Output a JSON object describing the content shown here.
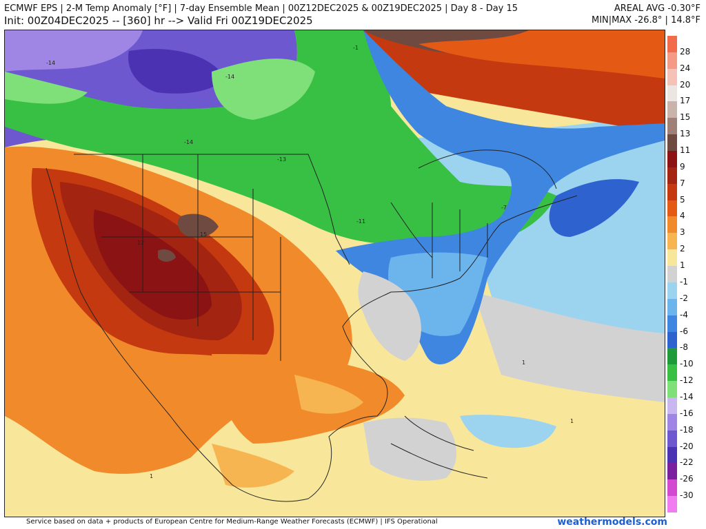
{
  "header": {
    "line1": "ECMWF EPS | 2-M Temp Anomaly [°F] | 7-day Ensemble Mean | 00Z12DEC2025 & 00Z19DEC2025 | Day 8 - Day 15",
    "line2": "Init: 00Z04DEC2025 -- [360] hr --> Valid Fri 00Z19DEC2025",
    "areal_avg": "AREAL AVG -0.30°F",
    "min_max": "MIN|MAX -26.8° | 14.8°F"
  },
  "footer": {
    "credit": "Service based on data + products of European Centre for Medium-Range Weather Forecasts (ECMWF) | IFS Operational",
    "brand": "weathermodels.com"
  },
  "scale": {
    "labels": [
      "28",
      "24",
      "20",
      "17",
      "15",
      "13",
      "11",
      "9",
      "7",
      "5",
      "4",
      "3",
      "2",
      "1",
      "-1",
      "-2",
      "-4",
      "-6",
      "-8",
      "-10",
      "-12",
      "-14",
      "-16",
      "-18",
      "-20",
      "-22",
      "-26",
      "-30"
    ],
    "colors": [
      "#f26b4a",
      "#f49a86",
      "#f6c2b8",
      "#ece6e3",
      "#c9b3ab",
      "#9f8177",
      "#6f4a40",
      "#8b1313",
      "#a32410",
      "#c4390f",
      "#e45a14",
      "#f08a2a",
      "#f7b552",
      "#f8e79a",
      "#d2d2d2",
      "#9cd4f0",
      "#6cb4ec",
      "#3f86e0",
      "#2d62cf",
      "#1f9a3a",
      "#37c044",
      "#7fe07a",
      "#c9b8f0",
      "#9f86e4",
      "#6d58cf",
      "#4a32b3",
      "#7a1f9d",
      "#d24ad0",
      "#f07cf0"
    ]
  },
  "map_labels": {
    "minus14_a": "-14",
    "minus14_b": "-14",
    "minus14_c": "-14",
    "plus15": "15",
    "plus12": "12",
    "minus7": "-7",
    "minus13": "-13",
    "minus11": "-11",
    "plus1_a": "1",
    "plus1_b": "1",
    "plus1_c": "1",
    "minus1": "-1"
  }
}
